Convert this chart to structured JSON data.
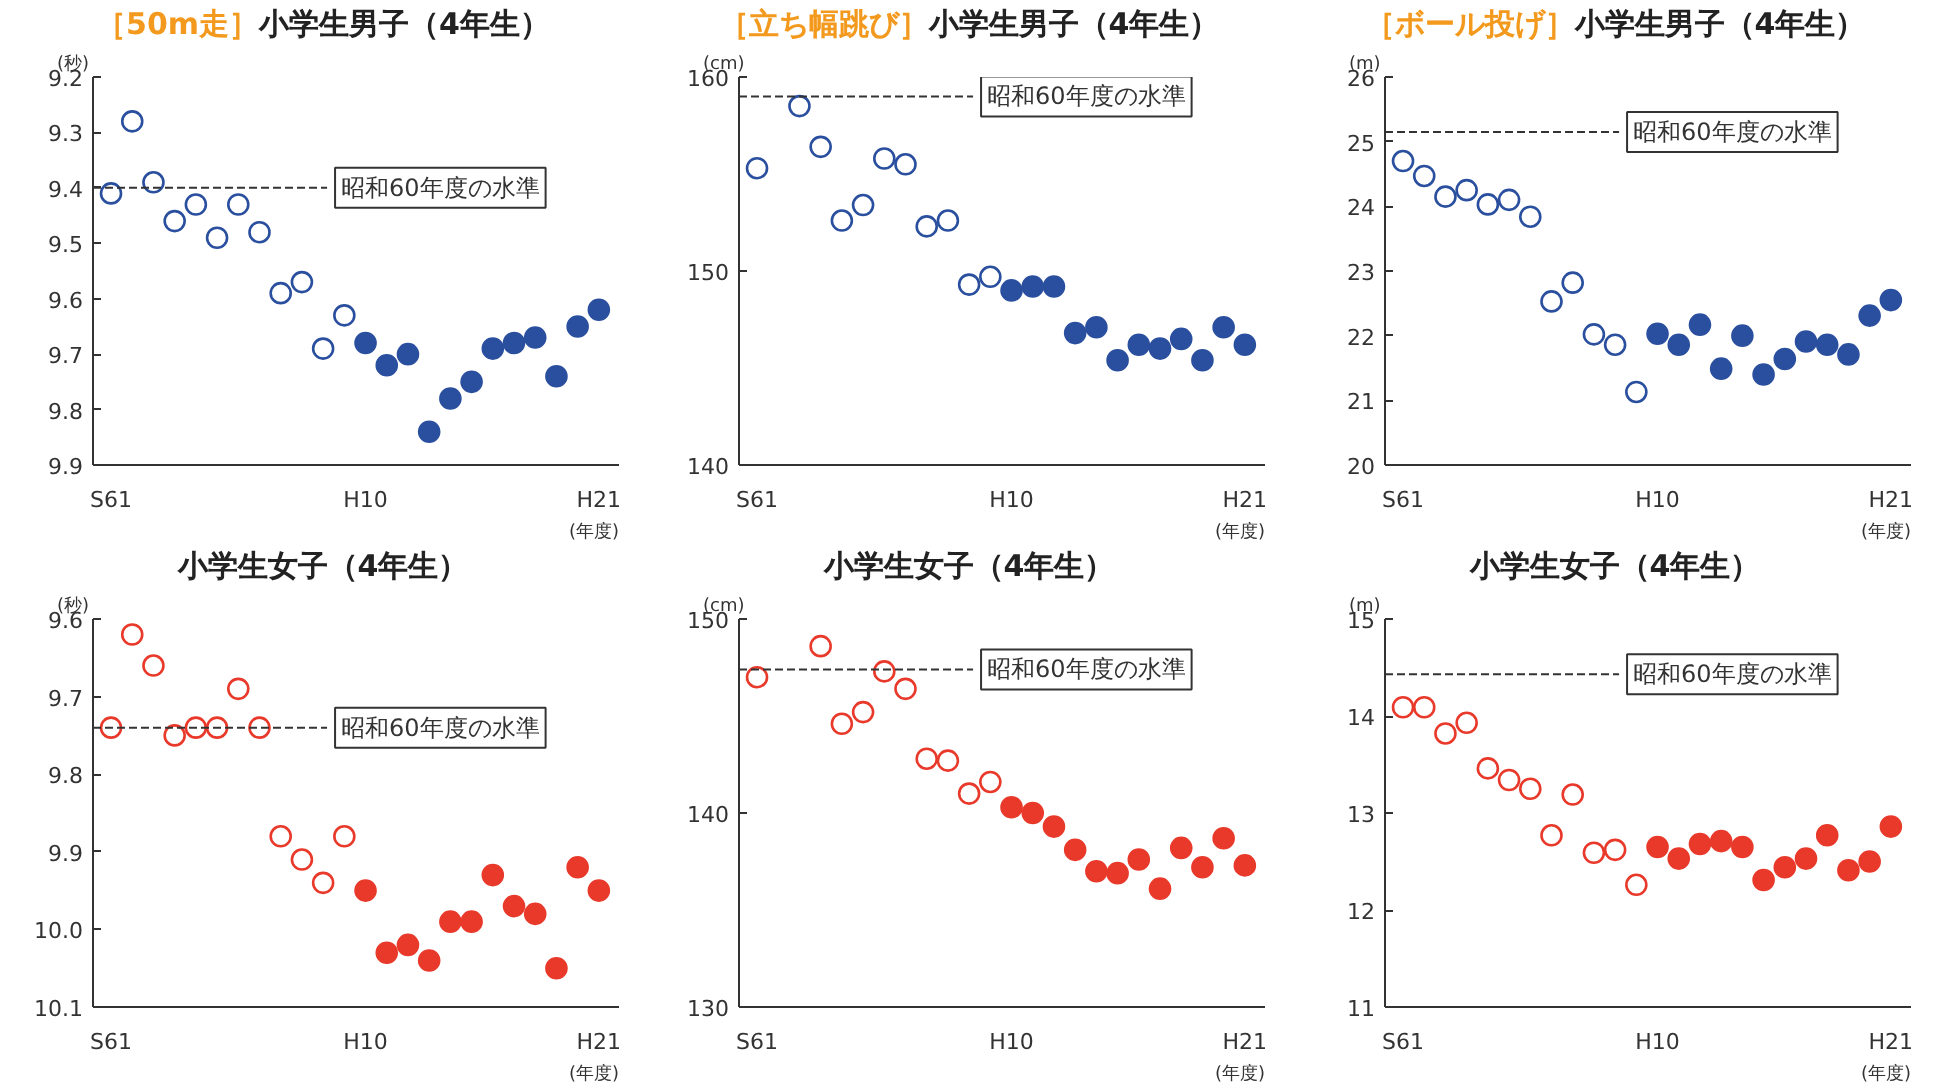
{
  "chart_data": [
    {
      "type": "scatter",
      "subtitle": "［50m走］",
      "title": "小学生男子（4年生）",
      "ylabel": "(秒)",
      "xlabel": "(年度)",
      "categories": [
        "S61",
        null,
        null,
        null,
        null,
        null,
        null,
        null,
        null,
        null,
        null,
        null,
        "H10",
        null,
        null,
        null,
        null,
        null,
        null,
        null,
        null,
        null,
        null,
        "H21"
      ],
      "ylim": [
        9.9,
        9.2
      ],
      "yticks": [
        9.2,
        9.3,
        9.4,
        9.5,
        9.6,
        9.7,
        9.8,
        9.9
      ],
      "series": [
        {
          "color": "#2a4f9e",
          "marker": "circle_open",
          "values": [
            9.41,
            9.28,
            9.39,
            9.46,
            9.43,
            9.49,
            9.43,
            9.48,
            9.59,
            9.57,
            9.69,
            9.63,
            null,
            null,
            null,
            null,
            null,
            null,
            null,
            null,
            null,
            null,
            null,
            null
          ]
        },
        {
          "color": "#2a4f9e",
          "marker": "circle",
          "values": [
            null,
            null,
            null,
            null,
            null,
            null,
            null,
            null,
            null,
            null,
            null,
            null,
            9.68,
            9.72,
            9.7,
            9.84,
            9.78,
            9.75,
            9.69,
            9.68,
            9.67,
            9.74,
            9.65,
            9.62
          ]
        }
      ],
      "ref_lines": [
        {
          "axis": "y",
          "value": 9.4,
          "label": "昭和60年度の水準",
          "line_style": "dashed",
          "color": "#333333"
        }
      ]
    },
    {
      "type": "scatter",
      "subtitle": "［立ち幅跳び］",
      "title": "小学生男子（4年生）",
      "ylabel": "(cm)",
      "xlabel": "(年度)",
      "categories": [
        "S61",
        null,
        null,
        null,
        null,
        null,
        null,
        null,
        null,
        null,
        null,
        null,
        "H10",
        null,
        null,
        null,
        null,
        null,
        null,
        null,
        null,
        null,
        null,
        "H21"
      ],
      "ylim": [
        140,
        160
      ],
      "yticks": [
        140,
        150,
        160
      ],
      "series": [
        {
          "color": "#2a4f9e",
          "marker": "circle_open",
          "values": [
            155.3,
            null,
            158.5,
            156.4,
            152.6,
            153.4,
            155.8,
            155.5,
            152.3,
            152.6,
            149.3,
            149.7,
            null,
            null,
            null,
            null,
            null,
            null,
            null,
            null,
            null,
            null,
            null,
            null
          ]
        },
        {
          "color": "#2a4f9e",
          "marker": "circle",
          "values": [
            null,
            null,
            null,
            null,
            null,
            null,
            null,
            null,
            null,
            null,
            null,
            null,
            149.0,
            149.2,
            149.2,
            146.8,
            147.1,
            145.4,
            146.2,
            146.0,
            146.5,
            145.4,
            147.1,
            146.2
          ]
        }
      ],
      "ref_lines": [
        {
          "axis": "y",
          "value": 159.0,
          "label": "昭和60年度の水準",
          "line_style": "dashed",
          "color": "#333333"
        }
      ]
    },
    {
      "type": "scatter",
      "subtitle": "［ボール投げ］",
      "title": "小学生男子（4年生）",
      "ylabel": "(m)",
      "xlabel": "(年度)",
      "categories": [
        "S61",
        null,
        null,
        null,
        null,
        null,
        null,
        null,
        null,
        null,
        null,
        null,
        "H10",
        null,
        null,
        null,
        null,
        null,
        null,
        null,
        null,
        null,
        null,
        "H21"
      ],
      "ylim": [
        20,
        26
      ],
      "yticks": [
        20,
        21,
        22,
        23,
        24,
        25,
        26
      ],
      "series": [
        {
          "color": "#2a4f9e",
          "marker": "circle_open",
          "values": [
            24.7,
            24.47,
            24.15,
            24.25,
            24.03,
            24.1,
            23.84,
            22.53,
            22.82,
            22.02,
            21.86,
            21.13,
            null,
            null,
            null,
            null,
            null,
            null,
            null,
            null,
            null,
            null,
            null,
            null
          ]
        },
        {
          "color": "#2a4f9e",
          "marker": "circle",
          "values": [
            null,
            null,
            null,
            null,
            null,
            null,
            null,
            null,
            null,
            null,
            null,
            null,
            22.03,
            21.86,
            22.17,
            21.49,
            22.0,
            21.4,
            21.64,
            21.91,
            21.86,
            21.71,
            22.31,
            22.55
          ]
        }
      ],
      "ref_lines": [
        {
          "axis": "y",
          "value": 25.15,
          "label": "昭和60年度の水準",
          "line_style": "dashed",
          "color": "#333333"
        }
      ]
    },
    {
      "type": "scatter",
      "title": "小学生女子（4年生）",
      "ylabel": "(秒)",
      "xlabel": "(年度)",
      "categories": [
        "S61",
        null,
        null,
        null,
        null,
        null,
        null,
        null,
        null,
        null,
        null,
        null,
        "H10",
        null,
        null,
        null,
        null,
        null,
        null,
        null,
        null,
        null,
        null,
        "H21"
      ],
      "ylim": [
        10.1,
        9.6
      ],
      "yticks": [
        9.6,
        9.7,
        9.8,
        9.9,
        {
          "value": 10.0,
          "label": "10.0"
        },
        10.1
      ],
      "series": [
        {
          "color": "#e8392a",
          "marker": "circle_open",
          "values": [
            9.74,
            9.62,
            9.66,
            9.75,
            9.74,
            9.74,
            9.69,
            9.74,
            9.88,
            9.91,
            9.94,
            9.88,
            null,
            null,
            null,
            null,
            null,
            null,
            null,
            null,
            null,
            null,
            null,
            null
          ]
        },
        {
          "color": "#e8392a",
          "marker": "circle",
          "values": [
            null,
            null,
            null,
            null,
            null,
            null,
            null,
            null,
            null,
            null,
            null,
            null,
            9.95,
            10.03,
            10.02,
            10.04,
            9.99,
            9.99,
            9.93,
            9.97,
            9.98,
            10.05,
            9.92,
            9.95
          ]
        }
      ],
      "ref_lines": [
        {
          "axis": "y",
          "value": 9.74,
          "label": "昭和60年度の水準",
          "line_style": "dashed",
          "color": "#333333"
        }
      ]
    },
    {
      "type": "scatter",
      "title": "小学生女子（4年生）",
      "ylabel": "(cm)",
      "xlabel": "(年度)",
      "categories": [
        "S61",
        null,
        null,
        null,
        null,
        null,
        null,
        null,
        null,
        null,
        null,
        null,
        "H10",
        null,
        null,
        null,
        null,
        null,
        null,
        null,
        null,
        null,
        null,
        "H21"
      ],
      "ylim": [
        130,
        150
      ],
      "yticks": [
        130,
        140,
        150
      ],
      "series": [
        {
          "color": "#e8392a",
          "marker": "circle_open",
          "values": [
            147.0,
            null,
            null,
            148.6,
            144.6,
            145.2,
            147.3,
            146.4,
            142.8,
            142.7,
            141.0,
            141.6,
            null,
            null,
            null,
            null,
            null,
            null,
            null,
            null,
            null,
            null,
            null,
            null
          ]
        },
        {
          "color": "#e8392a",
          "marker": "circle",
          "values": [
            null,
            null,
            null,
            null,
            null,
            null,
            null,
            null,
            null,
            null,
            null,
            null,
            140.3,
            140.0,
            139.3,
            138.1,
            137.0,
            136.9,
            137.6,
            136.1,
            138.2,
            137.2,
            138.7,
            137.3
          ]
        }
      ],
      "ref_lines": [
        {
          "axis": "y",
          "value": 147.4,
          "label": "昭和60年度の水準",
          "line_style": "dashed",
          "color": "#333333"
        }
      ]
    },
    {
      "type": "scatter",
      "title": "小学生女子（4年生）",
      "ylabel": "(m)",
      "xlabel": "(年度)",
      "categories": [
        "S61",
        null,
        null,
        null,
        null,
        null,
        null,
        null,
        null,
        null,
        null,
        null,
        "H10",
        null,
        null,
        null,
        null,
        null,
        null,
        null,
        null,
        null,
        null,
        "H21"
      ],
      "ylim": [
        11,
        15
      ],
      "yticks": [
        11,
        12,
        13,
        14,
        15
      ],
      "series": [
        {
          "color": "#e8392a",
          "marker": "circle_open",
          "values": [
            14.09,
            14.09,
            13.82,
            13.93,
            13.46,
            13.34,
            13.25,
            12.77,
            13.19,
            12.59,
            12.62,
            12.26,
            null,
            null,
            null,
            null,
            null,
            null,
            null,
            null,
            null,
            null,
            null,
            null
          ]
        },
        {
          "color": "#e8392a",
          "marker": "circle",
          "values": [
            null,
            null,
            null,
            null,
            null,
            null,
            null,
            null,
            null,
            null,
            null,
            null,
            12.65,
            12.53,
            12.68,
            12.71,
            12.65,
            12.31,
            12.44,
            12.53,
            12.77,
            12.41,
            12.5,
            12.86
          ]
        }
      ],
      "ref_lines": [
        {
          "axis": "y",
          "value": 14.43,
          "label": "昭和60年度の水準",
          "line_style": "dashed",
          "color": "#333333"
        }
      ]
    }
  ]
}
